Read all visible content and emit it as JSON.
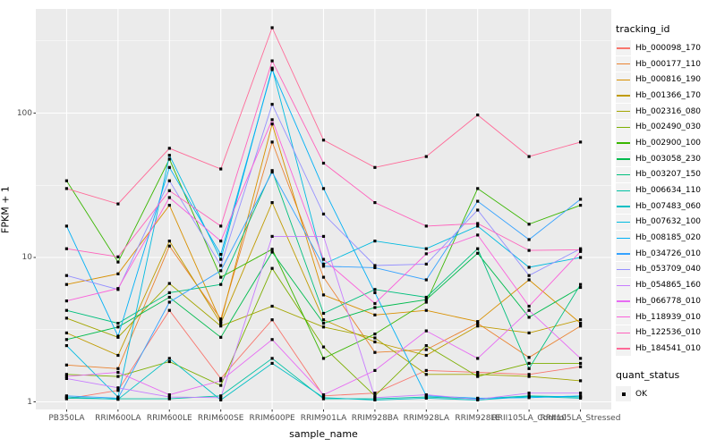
{
  "chart_data": {
    "type": "line",
    "title": "",
    "xlabel": "sample_name",
    "ylabel": "FPKM + 1",
    "y_scale": "log10",
    "y_ticks": [
      1,
      10,
      100
    ],
    "y_minor_ticks": [
      3.162,
      31.62,
      316.2
    ],
    "ylim": [
      0.89,
      525
    ],
    "grid": true,
    "legend_position": "right",
    "theme": {
      "panel_bg": "#EBEBEB",
      "grid_color": "#FFFFFF",
      "tick_text_color": "#4D4D4D",
      "axis_title_color": "#000000",
      "marker_color": "#000000",
      "legend_key_bg": "#F2F2F2"
    },
    "categories": [
      "PB350LA",
      "RRIM600LA",
      "RRIM600LE",
      "RRIM600SE",
      "RRIM600PE",
      "RRIM901LA",
      "RRIM928BA",
      "RRIM928LA",
      "RRIM928LE",
      "RRII105LA_Control",
      "RRII105LA_Stressed"
    ],
    "series": [
      {
        "tracking_id": "Hb_000098_170",
        "color": "#F8766D",
        "values": [
          1.05,
          1.2,
          4.3,
          1.45,
          3.7,
          1.1,
          1.15,
          1.65,
          1.6,
          1.55,
          1.75
        ]
      },
      {
        "tracking_id": "Hb_000177_110",
        "color": "#EA8331",
        "values": [
          1.8,
          1.7,
          12,
          3.75,
          63,
          7.3,
          2.2,
          2.3,
          3.5,
          2.03,
          3.35
        ]
      },
      {
        "tracking_id": "Hb_000816_190",
        "color": "#D89000",
        "values": [
          6.5,
          7.7,
          23,
          3.6,
          84,
          5.5,
          4.0,
          4.3,
          3.6,
          7.0,
          3.5
        ]
      },
      {
        "tracking_id": "Hb_001366_170",
        "color": "#C09B00",
        "values": [
          3.0,
          2.1,
          13,
          3.5,
          24,
          3.7,
          2.6,
          2.1,
          3.35,
          3.0,
          3.7
        ]
      },
      {
        "tracking_id": "Hb_002316_080",
        "color": "#A3A500",
        "values": [
          3.8,
          2.8,
          6.6,
          3.35,
          4.6,
          3.3,
          2.77,
          1.55,
          1.55,
          1.5,
          1.4
        ]
      },
      {
        "tracking_id": "Hb_002490_030",
        "color": "#7CAE00",
        "values": [
          1.55,
          1.5,
          1.9,
          1.3,
          8.4,
          2.4,
          1.1,
          2.45,
          1.5,
          1.85,
          1.85
        ]
      },
      {
        "tracking_id": "Hb_002900_100",
        "color": "#39B600",
        "values": [
          34,
          9.3,
          48,
          7.3,
          11.4,
          2.0,
          2.95,
          4.9,
          30,
          17,
          23
        ]
      },
      {
        "tracking_id": "Hb_003058_230",
        "color": "#00BB4E",
        "values": [
          2.7,
          3.3,
          5.3,
          2.8,
          10.9,
          3.5,
          4.5,
          5.1,
          10.7,
          3.85,
          6.2
        ]
      },
      {
        "tracking_id": "Hb_003207_150",
        "color": "#00BF7D",
        "values": [
          4.3,
          3.5,
          5.7,
          6.5,
          40,
          4.1,
          6.0,
          5.3,
          11.5,
          1.7,
          6.5
        ]
      },
      {
        "tracking_id": "Hb_006634_110",
        "color": "#00C1A3",
        "values": [
          1.06,
          1.05,
          1.05,
          1.1,
          2.0,
          1.05,
          1.05,
          1.08,
          1.05,
          1.1,
          1.08
        ]
      },
      {
        "tracking_id": "Hb_007483_060",
        "color": "#00BFC4",
        "values": [
          1.08,
          1.04,
          2.0,
          1.03,
          1.85,
          1.07,
          1.03,
          1.06,
          1.03,
          1.09,
          1.06
        ]
      },
      {
        "tracking_id": "Hb_007632_100",
        "color": "#00BAE0",
        "values": [
          2.45,
          1.08,
          51,
          9.7,
          205,
          9.0,
          13,
          11.5,
          16.5,
          8.55,
          10
        ]
      },
      {
        "tracking_id": "Hb_008185_020",
        "color": "#00B0F6",
        "values": [
          16.5,
          2.85,
          42,
          10.5,
          200,
          30,
          5.7,
          1.1,
          1.06,
          1.07,
          1.1
        ]
      },
      {
        "tracking_id": "Hb_034726_010",
        "color": "#35A2FF",
        "values": [
          1.1,
          1.06,
          4.9,
          8.1,
          39,
          8.7,
          8.5,
          7.0,
          24.5,
          13.3,
          25.3
        ]
      },
      {
        "tracking_id": "Hb_053709_040",
        "color": "#9590FF",
        "values": [
          7.5,
          6.0,
          34,
          8.8,
          115,
          20,
          8.8,
          9.0,
          21.3,
          7.5,
          11.5
        ]
      },
      {
        "tracking_id": "Hb_054865_160",
        "color": "#C77CFF",
        "values": [
          1.45,
          1.25,
          1.08,
          1.07,
          14,
          14,
          1.07,
          1.12,
          1.04,
          1.15,
          1.15
        ]
      },
      {
        "tracking_id": "Hb_066778_010",
        "color": "#E76BF3",
        "values": [
          1.5,
          1.6,
          1.12,
          1.4,
          2.7,
          1.12,
          1.65,
          3.1,
          2.0,
          4.3,
          2.0
        ]
      },
      {
        "tracking_id": "Hb_118939_010",
        "color": "#FA62DB",
        "values": [
          5.0,
          6.1,
          26,
          13,
          90,
          9.7,
          4.8,
          10.6,
          14.3,
          4.6,
          11.0
        ]
      },
      {
        "tracking_id": "Hb_122536_010",
        "color": "#FF62BC",
        "values": [
          11.5,
          10.1,
          29,
          16.5,
          230,
          45,
          24,
          16.5,
          17.2,
          11.2,
          11.3
        ]
      },
      {
        "tracking_id": "Hb_184541_010",
        "color": "#FF6A98",
        "values": [
          30,
          23.5,
          57,
          41,
          390,
          65,
          42,
          50,
          97,
          50,
          63
        ]
      }
    ],
    "legend": {
      "color_title": "tracking_id",
      "shape_title": "quant_status",
      "shape_entries": [
        {
          "label": "OK",
          "marker": "square",
          "color": "#000000"
        }
      ]
    }
  }
}
